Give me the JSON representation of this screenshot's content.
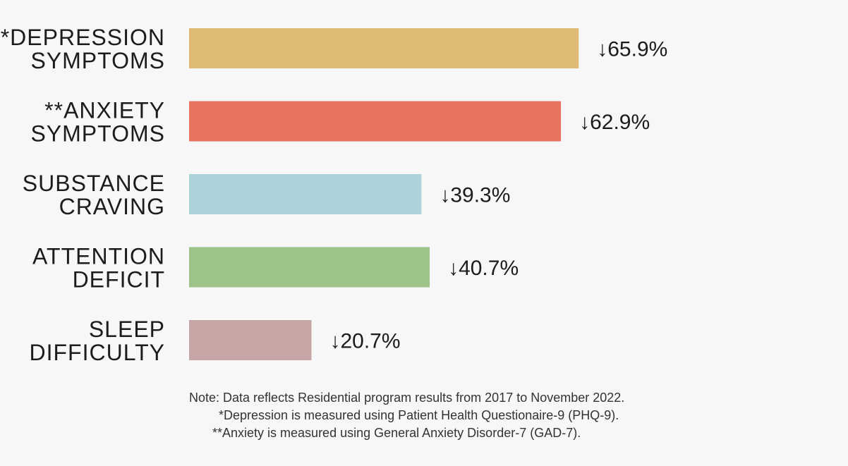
{
  "chart_data": {
    "type": "bar",
    "orientation": "horizontal",
    "categories": [
      [
        "*DEPRESSION",
        "SYMPTOMS"
      ],
      [
        "**ANXIETY",
        "SYMPTOMS"
      ],
      [
        "SUBSTANCE",
        "CRAVING"
      ],
      [
        "ATTENTION",
        "DEFICIT"
      ],
      [
        "SLEEP",
        "DIFFICULTY"
      ]
    ],
    "values": [
      65.9,
      62.9,
      39.3,
      40.7,
      20.7
    ],
    "value_labels": [
      "↓65.9%",
      "↓62.9%",
      "↓39.3%",
      "↓40.7%",
      "↓20.7%"
    ],
    "colors": [
      "#dfbb73",
      "#e8735e",
      "#acd2d9",
      "#9ec389",
      "#c5a6a4"
    ],
    "title": "",
    "xlabel": "",
    "ylabel": "",
    "xlim": [
      0,
      100
    ],
    "grid": false,
    "legend": "none"
  },
  "notes": {
    "note_prefix": "Note:",
    "line1": " Data reflects Residential program results from 2017 to November 2022.",
    "line2": "*Depression is measured using Patient Health Questionaire-9 (PHQ-9).",
    "line3": "**Anxiety is measured using General Anxiety Disorder-7 (GAD-7)."
  }
}
